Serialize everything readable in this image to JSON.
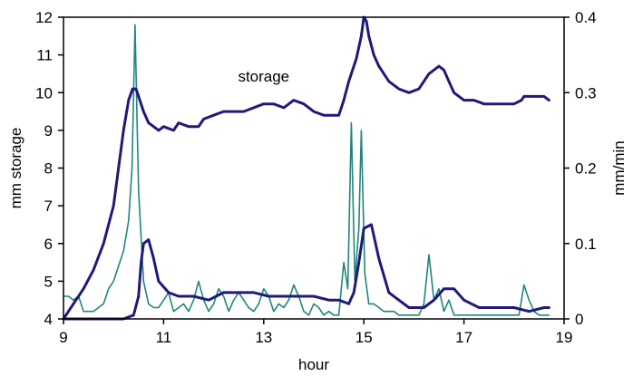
{
  "chart_data": {
    "type": "line",
    "title": "",
    "xlabel": "hour",
    "ylabel_left": "mm storage",
    "ylabel_right": "mm/min",
    "xlim": [
      9,
      19
    ],
    "ylim_left": [
      4,
      12
    ],
    "ylim_right": [
      0,
      0.4
    ],
    "x_ticks": [
      9,
      11,
      13,
      15,
      17,
      19
    ],
    "y_ticks_left": [
      4,
      5,
      6,
      7,
      8,
      9,
      10,
      11,
      12
    ],
    "y_ticks_right": [
      0,
      0.1,
      0.2,
      0.3,
      0.4
    ],
    "y_tick_labels_right": [
      "0",
      "0.1",
      "0.2",
      "0.3",
      "0.4"
    ],
    "grid": false,
    "legend": "none",
    "annotations": [
      {
        "text": "storage",
        "x": 13.0,
        "y": 10.3,
        "axis": "left"
      }
    ],
    "series": [
      {
        "axis": "left",
        "color": "#1f1a7a",
        "width": 3,
        "x": [
          9.0,
          9.2,
          9.4,
          9.6,
          9.8,
          10.0,
          10.1,
          10.2,
          10.3,
          10.38,
          10.45,
          10.5,
          10.6,
          10.7,
          10.8,
          10.9,
          11.0,
          11.2,
          11.3,
          11.5,
          11.7,
          11.8,
          12.0,
          12.2,
          12.4,
          12.6,
          12.8,
          13.0,
          13.2,
          13.4,
          13.6,
          13.8,
          14.0,
          14.2,
          14.35,
          14.5,
          14.6,
          14.7,
          14.75,
          14.85,
          14.95,
          15.0,
          15.05,
          15.1,
          15.2,
          15.3,
          15.5,
          15.7,
          15.9,
          16.1,
          16.2,
          16.3,
          16.4,
          16.5,
          16.6,
          16.7,
          16.8,
          17.0,
          17.2,
          17.4,
          17.6,
          17.8,
          18.0,
          18.15,
          18.2,
          18.4,
          18.6,
          18.7
        ],
        "y": [
          4.0,
          4.4,
          4.8,
          5.3,
          6.0,
          7.0,
          8.0,
          9.0,
          9.8,
          10.1,
          10.1,
          9.9,
          9.5,
          9.2,
          9.1,
          9.0,
          9.1,
          9.0,
          9.2,
          9.1,
          9.1,
          9.3,
          9.4,
          9.5,
          9.5,
          9.5,
          9.6,
          9.7,
          9.7,
          9.6,
          9.8,
          9.7,
          9.5,
          9.4,
          9.4,
          9.4,
          9.8,
          10.3,
          10.5,
          10.9,
          11.5,
          12.0,
          11.9,
          11.5,
          11.0,
          10.7,
          10.3,
          10.1,
          10.0,
          10.1,
          10.3,
          10.5,
          10.6,
          10.7,
          10.6,
          10.3,
          10.0,
          9.8,
          9.8,
          9.7,
          9.7,
          9.7,
          9.7,
          9.8,
          9.9,
          9.9,
          9.9,
          9.8
        ]
      },
      {
        "axis": "left",
        "color": "#1f1a7a",
        "width": 3,
        "x": [
          9.0,
          9.3,
          9.6,
          10.0,
          10.2,
          10.4,
          10.5,
          10.55,
          10.6,
          10.7,
          10.8,
          10.9,
          11.1,
          11.3,
          11.6,
          11.9,
          12.2,
          12.5,
          12.8,
          13.1,
          13.4,
          13.8,
          14.0,
          14.3,
          14.5,
          14.7,
          14.8,
          14.9,
          15.0,
          15.15,
          15.3,
          15.5,
          15.7,
          15.9,
          16.2,
          16.4,
          16.6,
          16.8,
          17.0,
          17.3,
          17.6,
          18.0,
          18.3,
          18.6,
          18.7
        ],
        "y": [
          4.0,
          4.0,
          4.0,
          4.0,
          4.0,
          4.1,
          4.6,
          5.5,
          6.0,
          6.1,
          5.6,
          5.0,
          4.7,
          4.6,
          4.6,
          4.5,
          4.7,
          4.7,
          4.7,
          4.6,
          4.6,
          4.6,
          4.6,
          4.5,
          4.5,
          4.4,
          4.7,
          5.5,
          6.4,
          6.5,
          5.6,
          4.7,
          4.5,
          4.3,
          4.3,
          4.5,
          4.8,
          4.8,
          4.5,
          4.3,
          4.3,
          4.3,
          4.2,
          4.3,
          4.3
        ]
      },
      {
        "axis": "right",
        "color": "#21867c",
        "width": 1.6,
        "x": [
          9.0,
          9.1,
          9.2,
          9.3,
          9.4,
          9.5,
          9.6,
          9.7,
          9.8,
          9.9,
          10.0,
          10.1,
          10.2,
          10.3,
          10.37,
          10.43,
          10.5,
          10.6,
          10.7,
          10.8,
          10.9,
          11.0,
          11.1,
          11.2,
          11.3,
          11.4,
          11.5,
          11.6,
          11.7,
          11.8,
          11.9,
          12.0,
          12.1,
          12.2,
          12.3,
          12.4,
          12.5,
          12.6,
          12.7,
          12.8,
          12.9,
          13.0,
          13.1,
          13.2,
          13.3,
          13.4,
          13.5,
          13.6,
          13.7,
          13.8,
          13.9,
          14.0,
          14.1,
          14.2,
          14.3,
          14.4,
          14.5,
          14.6,
          14.68,
          14.75,
          14.82,
          14.9,
          14.95,
          15.02,
          15.1,
          15.2,
          15.3,
          15.4,
          15.5,
          15.6,
          15.7,
          15.8,
          15.9,
          16.0,
          16.1,
          16.2,
          16.3,
          16.4,
          16.5,
          16.6,
          16.7,
          16.8,
          16.9,
          17.0,
          17.2,
          17.4,
          17.6,
          17.8,
          18.0,
          18.1,
          18.2,
          18.3,
          18.4,
          18.5,
          18.6,
          18.7
        ],
        "y": [
          0.03,
          0.03,
          0.025,
          0.03,
          0.01,
          0.01,
          0.01,
          0.015,
          0.02,
          0.04,
          0.05,
          0.07,
          0.09,
          0.13,
          0.2,
          0.39,
          0.17,
          0.05,
          0.02,
          0.015,
          0.015,
          0.025,
          0.035,
          0.01,
          0.015,
          0.02,
          0.01,
          0.025,
          0.05,
          0.025,
          0.01,
          0.02,
          0.04,
          0.03,
          0.01,
          0.025,
          0.035,
          0.025,
          0.015,
          0.01,
          0.02,
          0.04,
          0.03,
          0.01,
          0.02,
          0.015,
          0.025,
          0.045,
          0.03,
          0.01,
          0.005,
          0.02,
          0.015,
          0.005,
          0.01,
          0.005,
          0.005,
          0.075,
          0.04,
          0.26,
          0.05,
          0.12,
          0.25,
          0.06,
          0.02,
          0.02,
          0.015,
          0.01,
          0.01,
          0.01,
          0.005,
          0.005,
          0.005,
          0.005,
          0.005,
          0.02,
          0.085,
          0.025,
          0.04,
          0.01,
          0.025,
          0.005,
          0.005,
          0.005,
          0.005,
          0.005,
          0.005,
          0.005,
          0.005,
          0.005,
          0.045,
          0.025,
          0.01,
          0.005,
          0.005,
          0.005
        ]
      }
    ]
  }
}
